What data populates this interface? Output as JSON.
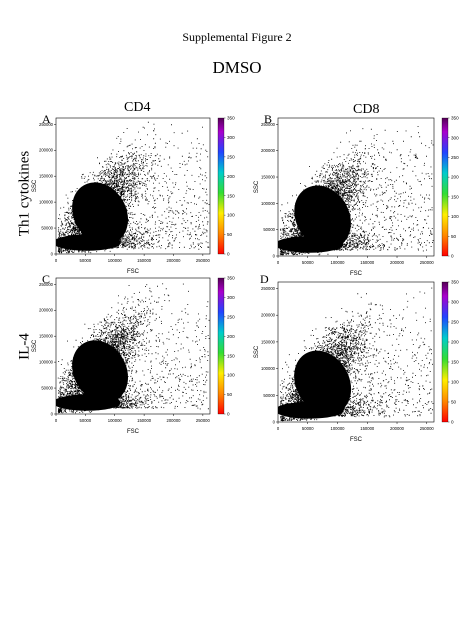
{
  "figure": {
    "supplemental_title": "Supplemental Figure 2",
    "condition": "DMSO",
    "column_titles": [
      "CD4",
      "CD8"
    ],
    "row_titles": [
      "Th1 cytokines",
      "IL-4"
    ]
  },
  "chart_data": [
    {
      "panel": "A",
      "type": "scatter",
      "xlabel": "FSC",
      "ylabel": "SSC",
      "xlim": [
        0,
        262144
      ],
      "ylim": [
        0,
        262144
      ],
      "xticks": [
        0,
        50000,
        100000,
        150000,
        200000,
        250000
      ],
      "yticks": [
        0,
        50000,
        100000,
        150000,
        200000,
        250000
      ],
      "colorbar": {
        "range": [
          0,
          350
        ],
        "ticks": [
          0,
          50,
          100,
          150,
          200,
          250,
          300,
          350
        ]
      },
      "population": {
        "center": [
          75000,
          95000
        ],
        "spread": [
          35000,
          45000
        ]
      }
    },
    {
      "panel": "B",
      "type": "scatter",
      "xlabel": "FSC",
      "ylabel": "SSC",
      "xlim": [
        0,
        262144
      ],
      "ylim": [
        0,
        262144
      ],
      "xticks": [
        0,
        50000,
        100000,
        150000,
        200000,
        250000
      ],
      "yticks": [
        0,
        50000,
        100000,
        150000,
        200000,
        250000
      ],
      "colorbar": {
        "range": [
          0,
          350
        ],
        "ticks": [
          0,
          50,
          100,
          150,
          200,
          250,
          300,
          350
        ]
      },
      "population": {
        "center": [
          75000,
          90000
        ],
        "spread": [
          35000,
          45000
        ]
      }
    },
    {
      "panel": "C",
      "type": "scatter",
      "xlabel": "FSC",
      "ylabel": "SSC",
      "xlim": [
        0,
        262144
      ],
      "ylim": [
        0,
        262144
      ],
      "xticks": [
        0,
        50000,
        100000,
        150000,
        200000,
        250000
      ],
      "yticks": [
        0,
        50000,
        100000,
        150000,
        200000,
        250000
      ],
      "colorbar": {
        "range": [
          0,
          350
        ],
        "ticks": [
          0,
          50,
          100,
          150,
          200,
          250,
          300,
          350
        ]
      },
      "population": {
        "center": [
          75000,
          100000
        ],
        "spread": [
          35000,
          45000
        ]
      }
    },
    {
      "panel": "D",
      "type": "scatter",
      "xlabel": "FSC",
      "ylabel": "SSC",
      "xlim": [
        0,
        262144
      ],
      "ylim": [
        0,
        262144
      ],
      "xticks": [
        0,
        50000,
        100000,
        150000,
        200000,
        250000
      ],
      "yticks": [
        0,
        50000,
        100000,
        150000,
        200000,
        250000
      ],
      "colorbar": {
        "range": [
          0,
          350
        ],
        "ticks": [
          0,
          50,
          100,
          150,
          200,
          250,
          300,
          350
        ]
      },
      "population": {
        "center": [
          75000,
          90000
        ],
        "spread": [
          35000,
          45000
        ]
      }
    }
  ]
}
